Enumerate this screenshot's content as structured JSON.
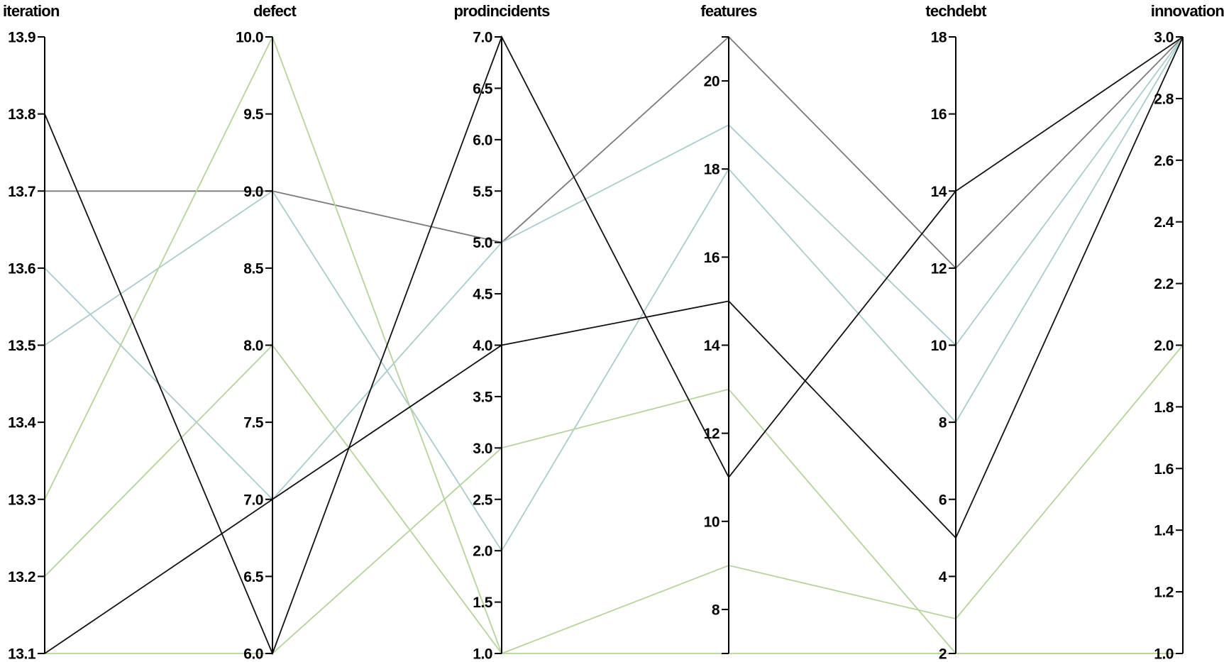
{
  "chart_data": {
    "type": "parallel_coordinates",
    "colors": {
      "black": "#111111",
      "grey": "#7a7a7a",
      "blue": "#a9cccc",
      "green": "#b5d39a"
    },
    "axes": [
      {
        "key": "iteration",
        "label": "iteration",
        "range": [
          13.1,
          13.9
        ],
        "ticks": [
          13.1,
          13.2,
          13.3,
          13.4,
          13.5,
          13.6,
          13.7,
          13.8,
          13.9
        ],
        "tick_labels": [
          "13.1",
          "13.2",
          "13.3",
          "13.4",
          "13.5",
          "13.6",
          "13.7",
          "13.8",
          "13.9"
        ]
      },
      {
        "key": "defect",
        "label": "defect",
        "range": [
          6.0,
          10.0
        ],
        "ticks": [
          6.0,
          6.5,
          7.0,
          7.5,
          8.0,
          8.5,
          9.0,
          9.5,
          10.0
        ],
        "tick_labels": [
          "6.0",
          "6.5",
          "7.0",
          "7.5",
          "8.0",
          "8.5",
          "9.0",
          "9.5",
          "10.0"
        ]
      },
      {
        "key": "prodincidents",
        "label": "prodincidents",
        "range": [
          1.0,
          7.0
        ],
        "ticks": [
          1.0,
          1.5,
          2.0,
          2.5,
          3.0,
          3.5,
          4.0,
          4.5,
          5.0,
          5.5,
          6.0,
          6.5,
          7.0
        ],
        "tick_labels": [
          "1.0",
          "1.5",
          "2.0",
          "2.5",
          "3.0",
          "3.5",
          "4.0",
          "4.5",
          "5.0",
          "5.5",
          "6.0",
          "6.5",
          "7.0"
        ]
      },
      {
        "key": "features",
        "label": "features",
        "range": [
          7,
          21
        ],
        "ticks": [
          7,
          8,
          10,
          12,
          14,
          16,
          18,
          20,
          21
        ],
        "tick_labels": [
          "",
          "8",
          "10",
          "12",
          "14",
          "16",
          "18",
          "20",
          ""
        ]
      },
      {
        "key": "techdebt",
        "label": "techdebt",
        "range": [
          2,
          18
        ],
        "ticks": [
          2,
          4,
          6,
          8,
          10,
          12,
          14,
          16,
          18
        ],
        "tick_labels": [
          "2",
          "4",
          "6",
          "8",
          "10",
          "12",
          "14",
          "16",
          "18"
        ]
      },
      {
        "key": "innovation",
        "label": "innovation",
        "range": [
          1.0,
          3.0
        ],
        "ticks": [
          1.0,
          1.2,
          1.4,
          1.6,
          1.8,
          2.0,
          2.2,
          2.4,
          2.6,
          2.8,
          3.0
        ],
        "tick_labels": [
          "1.0",
          "1.2",
          "1.4",
          "1.6",
          "1.8",
          "2.0",
          "2.2",
          "2.4",
          "2.6",
          "2.8",
          "3.0"
        ]
      }
    ],
    "records": [
      {
        "color": "black",
        "values": [
          13.8,
          6.0,
          7.0,
          11,
          14,
          3.0
        ]
      },
      {
        "color": "grey",
        "values": [
          13.7,
          9.0,
          5.0,
          21,
          12,
          3.0
        ]
      },
      {
        "color": "blue",
        "values": [
          13.6,
          7.0,
          5.0,
          19,
          10,
          3.0
        ]
      },
      {
        "color": "blue",
        "values": [
          13.5,
          9.0,
          2.0,
          18,
          8,
          3.0
        ]
      },
      {
        "color": "green",
        "values": [
          13.3,
          10.0,
          1.0,
          7,
          2,
          1.0
        ]
      },
      {
        "color": "green",
        "values": [
          13.2,
          8.0,
          1.0,
          9,
          2.9,
          2.0
        ]
      },
      {
        "color": "black",
        "values": [
          13.1,
          7.0,
          4.0,
          15,
          5,
          3.0
        ]
      },
      {
        "color": "green",
        "values": [
          13.1,
          6.0,
          3.0,
          13,
          2,
          1.0
        ]
      }
    ]
  }
}
